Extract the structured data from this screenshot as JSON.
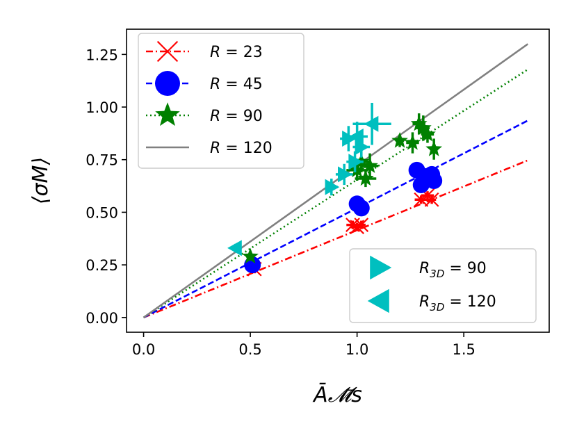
{
  "chart_data": {
    "type": "scatter",
    "xlabel": "Ā𝓜̄s",
    "ylabel": "⟨σM⟩",
    "xlim": [
      -0.08,
      1.9
    ],
    "ylim": [
      -0.07,
      1.37
    ],
    "xticks": [
      {
        "value": 0.0,
        "label": "0.0"
      },
      {
        "value": 0.5,
        "label": "0.5"
      },
      {
        "value": 1.0,
        "label": "1.0"
      },
      {
        "value": 1.5,
        "label": "1.5"
      }
    ],
    "yticks": [
      {
        "value": 0.0,
        "label": "0.00"
      },
      {
        "value": 0.25,
        "label": "0.25"
      },
      {
        "value": 0.5,
        "label": "0.50"
      },
      {
        "value": 0.75,
        "label": "0.75"
      },
      {
        "value": 1.0,
        "label": "1.00"
      },
      {
        "value": 1.25,
        "label": "1.25"
      }
    ],
    "lines": [
      {
        "name": "R = 23",
        "slope": 0.415,
        "x_end": 1.8,
        "color": "#ff0000",
        "style": "dashdot"
      },
      {
        "name": "R = 45",
        "slope": 0.52,
        "x_end": 1.8,
        "color": "#0000ff",
        "style": "dashed"
      },
      {
        "name": "R = 90",
        "slope": 0.655,
        "x_end": 1.8,
        "color": "#008000",
        "style": "dotted"
      },
      {
        "name": "R = 120",
        "slope": 0.722,
        "x_end": 1.8,
        "color": "#808080",
        "style": "solid"
      }
    ],
    "series": [
      {
        "name": "R = 23",
        "marker": "x",
        "color": "#ff0000",
        "points": [
          {
            "x": 0.52,
            "y": 0.23,
            "xerr": 0.02,
            "yerr": 0.02
          },
          {
            "x": 0.98,
            "y": 0.44,
            "xerr": 0.03,
            "yerr": 0.02
          },
          {
            "x": 1.0,
            "y": 0.43,
            "xerr": 0.03,
            "yerr": 0.02
          },
          {
            "x": 1.02,
            "y": 0.44,
            "xerr": 0.02,
            "yerr": 0.02
          },
          {
            "x": 1.3,
            "y": 0.56,
            "xerr": 0.03,
            "yerr": 0.02
          },
          {
            "x": 1.33,
            "y": 0.58,
            "xerr": 0.03,
            "yerr": 0.02
          },
          {
            "x": 1.35,
            "y": 0.56,
            "xerr": 0.02,
            "yerr": 0.02
          }
        ]
      },
      {
        "name": "R = 45",
        "marker": "circle",
        "color": "#0000ff",
        "points": [
          {
            "x": 0.51,
            "y": 0.25,
            "xerr": 0.02,
            "yerr": 0.02
          },
          {
            "x": 1.0,
            "y": 0.54,
            "xerr": 0.02,
            "yerr": 0.03
          },
          {
            "x": 1.02,
            "y": 0.52,
            "xerr": 0.02,
            "yerr": 0.03
          },
          {
            "x": 1.28,
            "y": 0.7,
            "xerr": 0.03,
            "yerr": 0.03
          },
          {
            "x": 1.3,
            "y": 0.63,
            "xerr": 0.02,
            "yerr": 0.02
          },
          {
            "x": 1.32,
            "y": 0.67,
            "xerr": 0.03,
            "yerr": 0.02
          },
          {
            "x": 1.35,
            "y": 0.68,
            "xerr": 0.03,
            "yerr": 0.02
          },
          {
            "x": 1.36,
            "y": 0.65,
            "xerr": 0.02,
            "yerr": 0.02
          }
        ]
      },
      {
        "name": "R = 90",
        "marker": "star",
        "color": "#008000",
        "points": [
          {
            "x": 0.5,
            "y": 0.29,
            "xerr": 0.02,
            "yerr": 0.02
          },
          {
            "x": 1.0,
            "y": 0.7,
            "xerr": 0.05,
            "yerr": 0.05
          },
          {
            "x": 1.02,
            "y": 0.74,
            "xerr": 0.04,
            "yerr": 0.05
          },
          {
            "x": 1.04,
            "y": 0.66,
            "xerr": 0.05,
            "yerr": 0.04
          },
          {
            "x": 1.06,
            "y": 0.72,
            "xerr": 0.04,
            "yerr": 0.06
          },
          {
            "x": 1.2,
            "y": 0.84,
            "xerr": 0.02,
            "yerr": 0.03
          },
          {
            "x": 1.26,
            "y": 0.83,
            "xerr": 0.03,
            "yerr": 0.05
          },
          {
            "x": 1.29,
            "y": 0.92,
            "xerr": 0.03,
            "yerr": 0.05
          },
          {
            "x": 1.31,
            "y": 0.9,
            "xerr": 0.03,
            "yerr": 0.06
          },
          {
            "x": 1.33,
            "y": 0.87,
            "xerr": 0.03,
            "yerr": 0.04
          },
          {
            "x": 1.36,
            "y": 0.8,
            "xerr": 0.02,
            "yerr": 0.05
          }
        ]
      },
      {
        "name": "R3D = 90",
        "marker": "triangle-right",
        "color": "#00bfbf",
        "points": [
          {
            "x": 0.88,
            "y": 0.62,
            "xerr": 0.03,
            "yerr": 0.04
          },
          {
            "x": 0.94,
            "y": 0.68,
            "xerr": 0.04,
            "yerr": 0.05
          },
          {
            "x": 0.96,
            "y": 0.85,
            "xerr": 0.04,
            "yerr": 0.06
          },
          {
            "x": 0.99,
            "y": 0.74,
            "xerr": 0.04,
            "yerr": 0.05
          },
          {
            "x": 1.02,
            "y": 0.81,
            "xerr": 0.04,
            "yerr": 0.05
          }
        ]
      },
      {
        "name": "R3D = 120",
        "marker": "triangle-left",
        "color": "#00bfbf",
        "points": [
          {
            "x": 0.43,
            "y": 0.33,
            "xerr": 0.02,
            "yerr": 0.02
          },
          {
            "x": 1.07,
            "y": 0.92,
            "xerr": 0.09,
            "yerr": 0.1
          },
          {
            "x": 1.0,
            "y": 0.86,
            "xerr": 0.05,
            "yerr": 0.07
          }
        ]
      }
    ],
    "legend1": {
      "position": "upper-left",
      "entries": [
        {
          "prefix": "R",
          "suffix": "",
          "value": "= 23",
          "marker": "x",
          "color": "#ff0000",
          "style": "dashdot"
        },
        {
          "prefix": "R",
          "suffix": "",
          "value": "= 45",
          "marker": "circle",
          "color": "#0000ff",
          "style": "dashed"
        },
        {
          "prefix": "R",
          "suffix": "",
          "value": "= 90",
          "marker": "star",
          "color": "#008000",
          "style": "dotted"
        },
        {
          "prefix": "R",
          "suffix": "",
          "value": "= 120",
          "marker": "none",
          "color": "#808080",
          "style": "solid"
        }
      ]
    },
    "legend2": {
      "position": "lower-right",
      "entries": [
        {
          "prefix": "R",
          "suffix": "3D",
          "value": "= 90",
          "marker": "triangle-right",
          "color": "#00bfbf"
        },
        {
          "prefix": "R",
          "suffix": "3D",
          "value": "= 120",
          "marker": "triangle-left",
          "color": "#00bfbf"
        }
      ]
    }
  }
}
